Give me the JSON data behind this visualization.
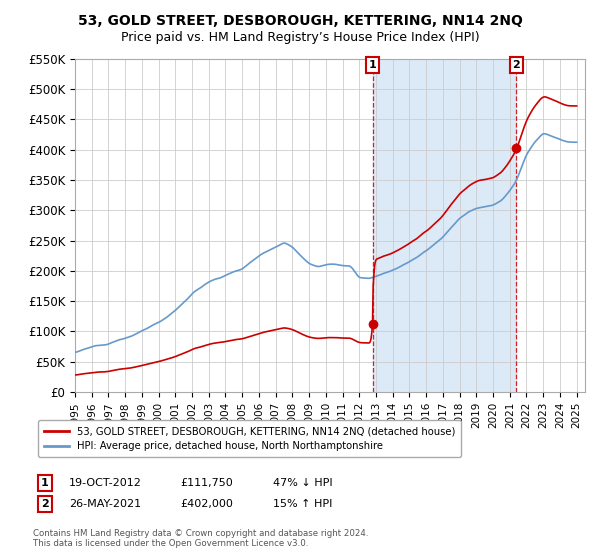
{
  "title": "53, GOLD STREET, DESBOROUGH, KETTERING, NN14 2NQ",
  "subtitle": "Price paid vs. HM Land Registry’s House Price Index (HPI)",
  "legend_label_red": "53, GOLD STREET, DESBOROUGH, KETTERING, NN14 2NQ (detached house)",
  "legend_label_blue": "HPI: Average price, detached house, North Northamptonshire",
  "sale1_label": "1",
  "sale1_date": "19-OCT-2012",
  "sale1_price": "£111,750",
  "sale1_hpi": "47% ↓ HPI",
  "sale1_year": 2012.8,
  "sale1_value": 111750,
  "sale2_label": "2",
  "sale2_date": "26-MAY-2021",
  "sale2_price": "£402,000",
  "sale2_hpi": "15% ↑ HPI",
  "sale2_year": 2021.4,
  "sale2_value": 402000,
  "footnote1": "Contains HM Land Registry data © Crown copyright and database right 2024.",
  "footnote2": "This data is licensed under the Open Government Licence v3.0.",
  "ylim": [
    0,
    550000
  ],
  "yticks": [
    0,
    50000,
    100000,
    150000,
    200000,
    250000,
    300000,
    350000,
    400000,
    450000,
    500000,
    550000
  ],
  "ytick_labels": [
    "£0",
    "£50K",
    "£100K",
    "£150K",
    "£200K",
    "£250K",
    "£300K",
    "£350K",
    "£400K",
    "£450K",
    "£500K",
    "£550K"
  ],
  "xlim_start": 1995.0,
  "xlim_end": 2025.5,
  "background_color": "#ffffff",
  "plot_bg_color": "#ffffff",
  "grid_color": "#cccccc",
  "shade_color": "#dce9f7",
  "red_color": "#cc0000",
  "blue_color": "#6699cc",
  "title_fontsize": 10,
  "subtitle_fontsize": 9
}
